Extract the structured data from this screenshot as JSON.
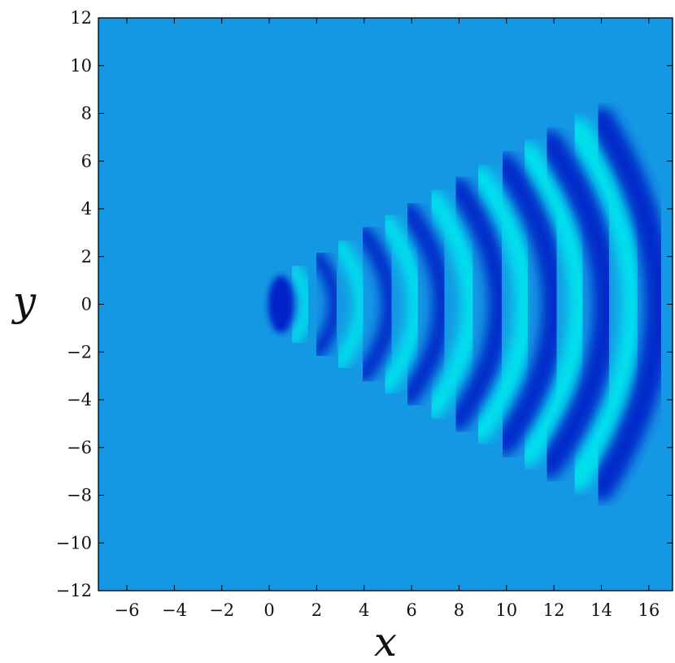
{
  "chart_data": {
    "type": "heatmap",
    "title": "",
    "xlabel": "x",
    "ylabel": "y",
    "xlim": [
      -7.2,
      17
    ],
    "ylim": [
      -12,
      12
    ],
    "x_ticks": [
      -6,
      -4,
      -2,
      0,
      2,
      4,
      6,
      8,
      10,
      12,
      14,
      16
    ],
    "y_ticks": [
      -12,
      -10,
      -8,
      -6,
      -4,
      -2,
      0,
      2,
      4,
      6,
      8,
      10,
      12
    ],
    "x_tick_labels": [
      "−6",
      "−4",
      "−2",
      "0",
      "2",
      "4",
      "6",
      "8",
      "10",
      "12",
      "14",
      "16"
    ],
    "y_tick_labels": [
      "−12",
      "−10",
      "−8",
      "−6",
      "−4",
      "−2",
      "0",
      "2",
      "4",
      "6",
      "8",
      "10",
      "12"
    ],
    "grid": false,
    "colors": {
      "background": "#1598e4",
      "trough": "#0022c8",
      "crest": "#00e6ee"
    },
    "pattern": {
      "description": "V-shaped wedge of alternating curved wave bands opening to the right from a source near the origin",
      "source": [
        0.5,
        0
      ],
      "band_spacing": 2.2,
      "troughs_x_on_axis": [
        0.5,
        2.8,
        5.1,
        7.3,
        9.7,
        12.0,
        14.2,
        16.4
      ],
      "crests_x_on_axis": [
        1.6,
        3.9,
        6.2,
        8.5,
        10.8,
        13.1,
        15.4
      ],
      "wedge_half_extent_at_x16": 6.5
    }
  }
}
